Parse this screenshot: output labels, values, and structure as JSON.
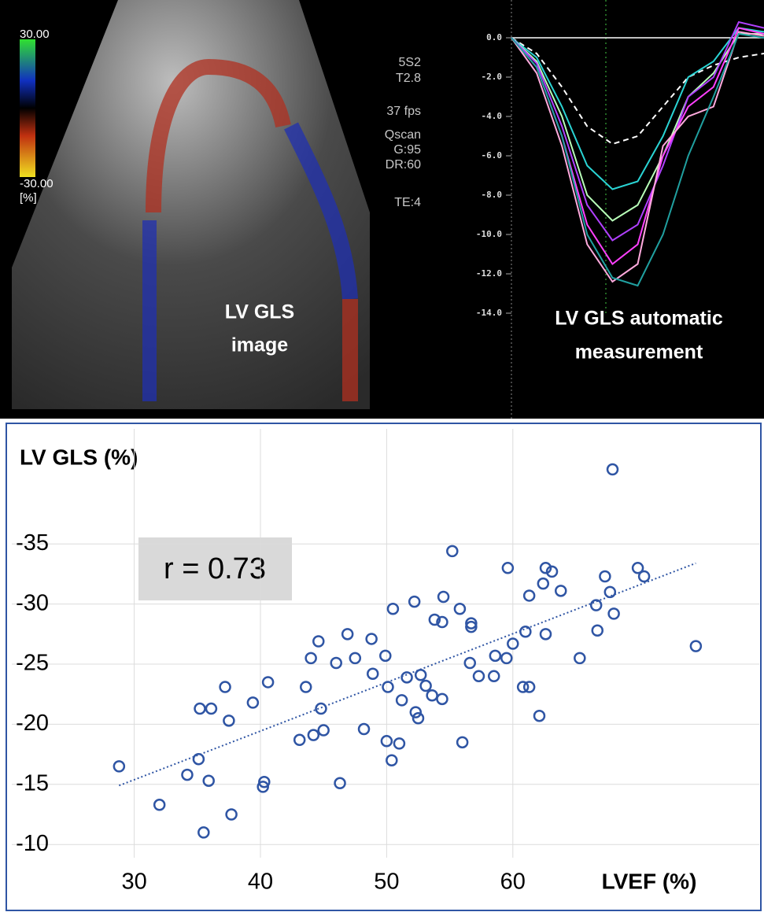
{
  "echo_image": {
    "color_scale": {
      "max": "30.00",
      "min": "-30.00",
      "unit": "[%]"
    },
    "settings": [
      "5S2",
      "T2.8",
      "37 fps",
      "Qscan",
      "G:95",
      "DR:60",
      "TE:4"
    ],
    "caption_lines": [
      "LV GLS",
      "image"
    ]
  },
  "chart_data": [
    {
      "type": "line",
      "annotation_lines": [
        "LV GLS automatic",
        "measurement"
      ],
      "x": [
        0,
        1,
        2,
        3,
        4,
        5,
        6,
        7,
        8,
        9,
        10
      ],
      "xlim": [
        0,
        10
      ],
      "ylim": [
        -14,
        1.6
      ],
      "yticks": [
        {
          "value": 0,
          "label": "0.0"
        },
        {
          "value": -2,
          "label": "-2.0"
        },
        {
          "value": -4,
          "label": "-4.0"
        },
        {
          "value": -6,
          "label": "-6.0"
        },
        {
          "value": -8,
          "label": "-8.0"
        },
        {
          "value": -10,
          "label": "-10.0"
        },
        {
          "value": -12,
          "label": "-12.0"
        },
        {
          "value": -14,
          "label": "-14.0"
        }
      ],
      "series": [
        {
          "color": "#ffffff",
          "dashed": true,
          "values": [
            0,
            -0.8,
            -2.5,
            -4.5,
            -5.4,
            -5.0,
            -3.5,
            -2.0,
            -1.4,
            -1.0,
            -0.8
          ]
        },
        {
          "color": "#2ad4d4",
          "values": [
            0,
            -1.0,
            -3.5,
            -6.5,
            -7.7,
            -7.3,
            -5.0,
            -2.0,
            -1.2,
            0.5,
            0.3
          ]
        },
        {
          "color": "#b8ffb8",
          "values": [
            0,
            -1.2,
            -4.0,
            -8.0,
            -9.3,
            -8.5,
            -6.0,
            -3.0,
            -1.8,
            0.2,
            0.2
          ]
        },
        {
          "color": "#b040ff",
          "values": [
            0,
            -1.3,
            -4.5,
            -8.5,
            -10.3,
            -9.5,
            -6.5,
            -3.0,
            -2.0,
            0.8,
            0.5
          ]
        },
        {
          "color": "#ff40ff",
          "values": [
            0,
            -1.5,
            -5.0,
            -9.5,
            -11.5,
            -10.5,
            -6.0,
            -3.5,
            -2.5,
            0.5,
            0.2
          ]
        },
        {
          "color": "#ffaadd",
          "values": [
            0,
            -1.8,
            -5.5,
            -10.5,
            -12.4,
            -11.5,
            -5.5,
            -4.0,
            -3.5,
            0.3,
            0.1
          ]
        },
        {
          "color": "#20a0a0",
          "values": [
            0,
            -1.5,
            -5.0,
            -10.0,
            -12.2,
            -12.6,
            -10.0,
            -6.0,
            -3.0,
            0.2,
            0.0
          ]
        }
      ]
    },
    {
      "type": "scatter",
      "y_label": "LV GLS (%)",
      "x_label": "LVEF (%)",
      "annotation": "r = 0.73",
      "color": "#2f55a4",
      "grid": true,
      "xlim": [
        20.3,
        79.9
      ],
      "ylim": [
        -8.9,
        -44.9
      ],
      "xticks": [
        30,
        40,
        50,
        60
      ],
      "yticks": [
        -35,
        -30,
        -25,
        -20,
        -15,
        -10
      ],
      "x": [
        28.8,
        32.0,
        34.2,
        35.1,
        35.2,
        36.1,
        35.5,
        35.9,
        37.2,
        37.5,
        37.7,
        39.4,
        40.2,
        40.3,
        40.6,
        43.1,
        43.6,
        44.0,
        44.2,
        44.6,
        44.8,
        45.0,
        46.0,
        46.3,
        46.9,
        47.5,
        48.2,
        48.8,
        48.9,
        49.9,
        50.1,
        50.0,
        50.4,
        50.5,
        51.0,
        51.2,
        51.6,
        52.2,
        52.3,
        52.5,
        52.7,
        53.1,
        53.6,
        53.8,
        54.4,
        54.4,
        54.5,
        55.2,
        55.8,
        56.0,
        56.6,
        56.7,
        56.7,
        57.3,
        58.5,
        58.6,
        59.6,
        59.5,
        60.0,
        60.8,
        61.3,
        61.0,
        61.3,
        62.1,
        62.4,
        62.6,
        62.6,
        63.1,
        63.8,
        65.3,
        66.6,
        66.7,
        67.3,
        67.7,
        67.9,
        68.0,
        69.9,
        70.4,
        74.5
      ],
      "y": [
        -16.5,
        -13.3,
        -15.8,
        -17.1,
        -21.3,
        -21.3,
        -11.0,
        -15.3,
        -23.1,
        -20.3,
        -12.5,
        -21.8,
        -14.8,
        -15.2,
        -23.5,
        -18.7,
        -23.1,
        -25.5,
        -19.1,
        -26.9,
        -21.3,
        -19.5,
        -25.1,
        -15.1,
        -27.5,
        -25.5,
        -19.6,
        -27.1,
        -24.2,
        -25.7,
        -23.1,
        -18.6,
        -17.0,
        -29.6,
        -18.4,
        -22.0,
        -23.9,
        -30.2,
        -21.0,
        -20.5,
        -24.1,
        -23.2,
        -22.4,
        -28.7,
        -28.5,
        -22.1,
        -30.6,
        -34.4,
        -29.6,
        -18.5,
        -25.1,
        -28.4,
        -28.1,
        -24.0,
        -24.0,
        -25.7,
        -33.0,
        -25.5,
        -26.7,
        -23.1,
        -23.1,
        -27.7,
        -30.7,
        -20.7,
        -31.7,
        -27.5,
        -33.0,
        -32.7,
        -31.1,
        -25.5,
        -29.9,
        -27.8,
        -32.3,
        -31.0,
        -41.2,
        -29.2,
        -33.0,
        -32.3,
        -26.5
      ],
      "trendline": {
        "x": [
          28.8,
          74.5
        ],
        "y": [
          -14.9,
          -33.4
        ]
      }
    }
  ]
}
